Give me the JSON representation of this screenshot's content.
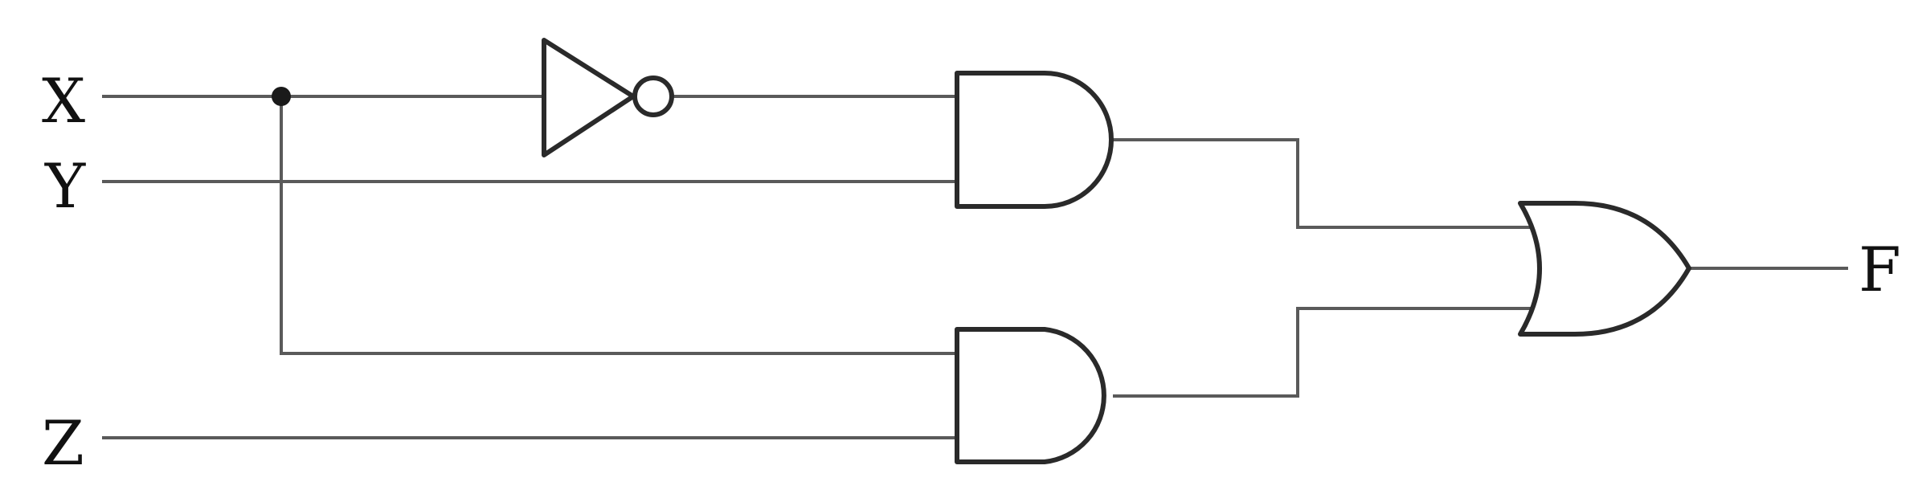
{
  "diagram": {
    "inputs": {
      "x": "X",
      "y": "Y",
      "z": "Z"
    },
    "output": {
      "f": "F"
    },
    "gates": [
      {
        "id": "not1",
        "type": "NOT",
        "inputs": [
          "X"
        ]
      },
      {
        "id": "and1",
        "type": "AND",
        "inputs": [
          "not1",
          "Y"
        ]
      },
      {
        "id": "and2",
        "type": "AND",
        "inputs": [
          "X",
          "Z"
        ]
      },
      {
        "id": "or1",
        "type": "OR",
        "inputs": [
          "and1",
          "and2"
        ],
        "output": "F"
      }
    ]
  }
}
